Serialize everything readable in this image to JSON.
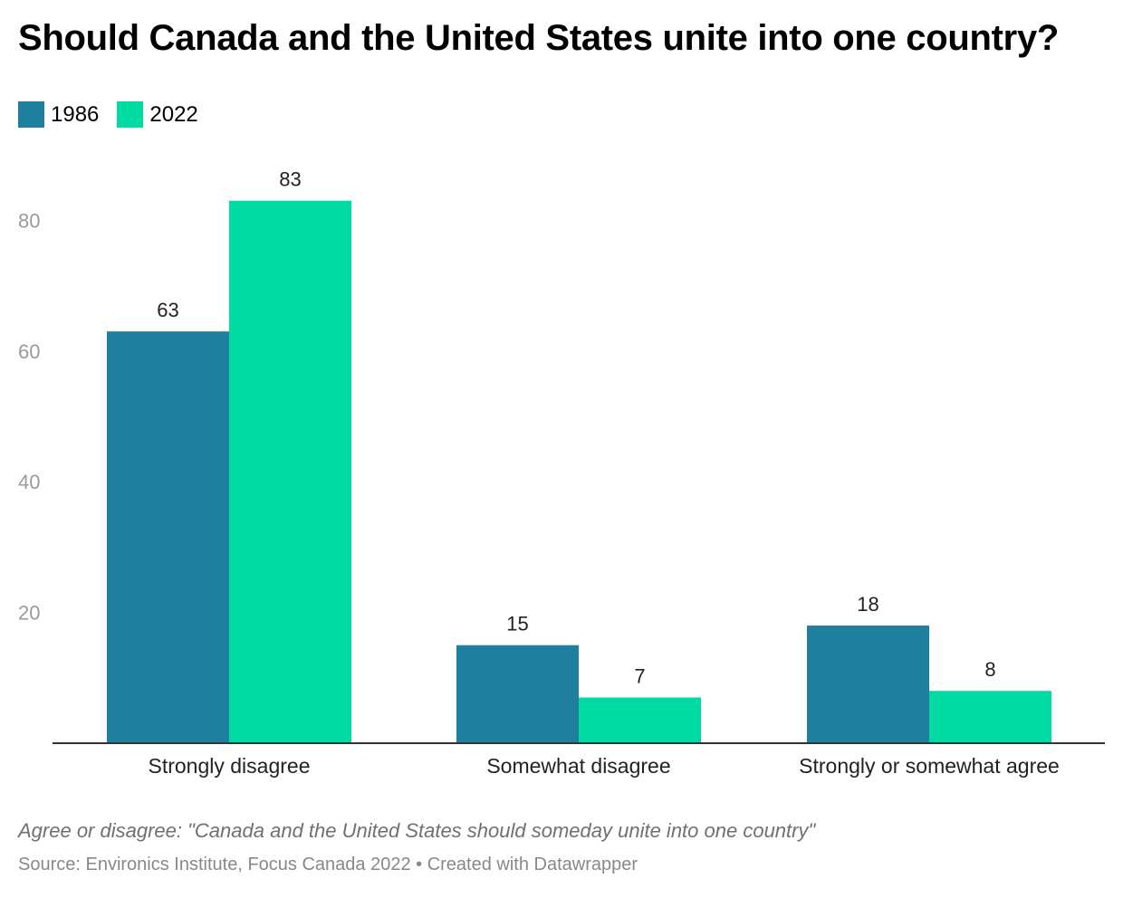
{
  "chart_data": {
    "type": "bar",
    "title": "Should Canada and the United States unite into one country?",
    "categories": [
      "Strongly disagree",
      "Somewhat disagree",
      "Strongly or somewhat agree"
    ],
    "series": [
      {
        "name": "1986",
        "color": "#1f7f9f",
        "values": [
          63,
          15,
          18
        ]
      },
      {
        "name": "2022",
        "color": "#00dba3",
        "values": [
          83,
          7,
          8
        ]
      }
    ],
    "yticks": [
      20,
      40,
      60,
      80
    ],
    "ylim": [
      0,
      90
    ],
    "grid": false,
    "legend_position": "top-left",
    "notes": "Agree or disagree: \"Canada and the United States should someday unite into one country\"",
    "source": "Source: Environics Institute, Focus Canada 2022 • Created with Datawrapper"
  }
}
